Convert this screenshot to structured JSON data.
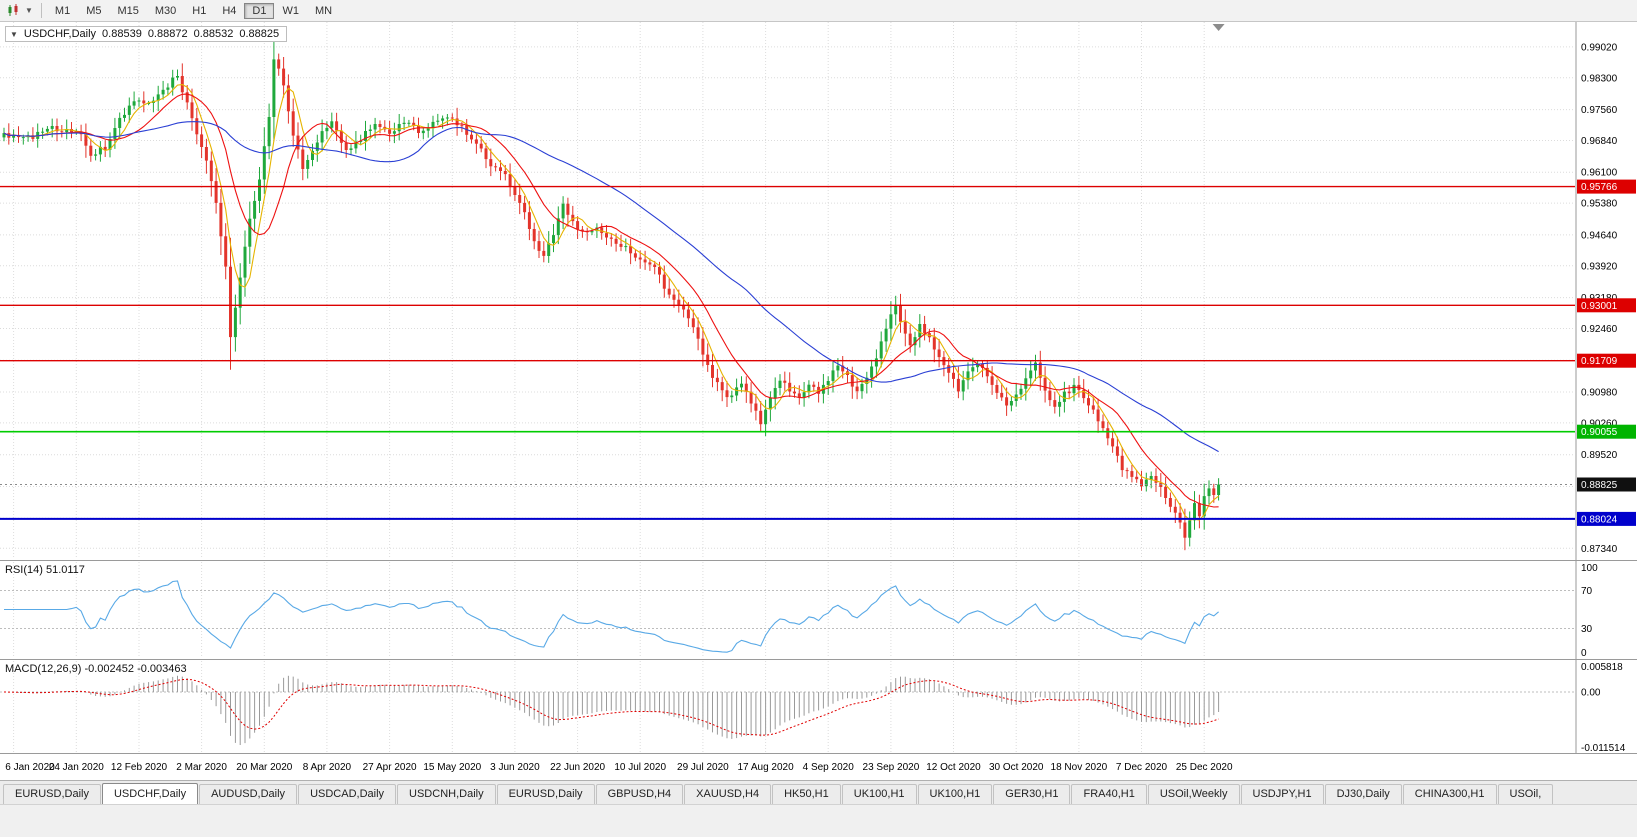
{
  "toolbar": {
    "timeframes": [
      {
        "label": "M1",
        "active": false
      },
      {
        "label": "M5",
        "active": false
      },
      {
        "label": "M15",
        "active": false
      },
      {
        "label": "M30",
        "active": false
      },
      {
        "label": "H1",
        "active": false
      },
      {
        "label": "H4",
        "active": false
      },
      {
        "label": "D1",
        "active": true
      },
      {
        "label": "W1",
        "active": false
      },
      {
        "label": "MN",
        "active": false
      }
    ]
  },
  "chart": {
    "symbol_period": "USDCHF,Daily",
    "open": "0.88539",
    "high": "0.88872",
    "low": "0.88532",
    "close": "0.88825"
  },
  "indicators": {
    "rsi_label": "RSI(14) 51.0117",
    "macd_label": "MACD(12,26,9) -0.002452 -0.003463"
  },
  "chart_data": {
    "type": "candlestick",
    "symbol": "USDCHF",
    "timeframe": "Daily",
    "ohlc_last": {
      "open": 0.88539,
      "high": 0.88872,
      "low": 0.88532,
      "close": 0.88825
    },
    "last_close": 0.88825,
    "candle_count": 253,
    "price_axis": {
      "min": 0.8709,
      "max": 0.996,
      "tick_labels": [
        "0.99020",
        "0.98300",
        "0.97560",
        "0.96840",
        "0.96100",
        "0.95380",
        "0.94640",
        "0.93920",
        "0.93180",
        "0.92460",
        "0.91720",
        "0.90980",
        "0.90260",
        "0.89520",
        "0.88780",
        "0.88040",
        "0.87340"
      ]
    },
    "x_labels": [
      "6 Jan 2020",
      "24 Jan 2020",
      "12 Feb 2020",
      "2 Mar 2020",
      "20 Mar 2020",
      "8 Apr 2020",
      "27 Apr 2020",
      "15 May 2020",
      "3 Jun 2020",
      "22 Jun 2020",
      "10 Jul 2020",
      "29 Jul 2020",
      "17 Aug 2020",
      "4 Sep 2020",
      "23 Sep 2020",
      "12 Oct 2020",
      "30 Oct 2020",
      "18 Nov 2020",
      "7 Dec 2020",
      "25 Dec 2020"
    ],
    "colors": {
      "up": "#1fa83c",
      "down": "#e3342b",
      "background": "#ffffff"
    },
    "levels": [
      {
        "name": "resistance-1",
        "label": "0.95766",
        "value": 0.95766,
        "badge_color": "#dd0000",
        "line_color": "#dd0000",
        "dash": false,
        "width": 1.4
      },
      {
        "name": "resistance-2",
        "label": "0.93001",
        "value": 0.93001,
        "badge_color": "#dd0000",
        "line_color": "#dd0000",
        "dash": false,
        "width": 1.4
      },
      {
        "name": "resistance-3",
        "label": "0.91709",
        "value": 0.91709,
        "badge_color": "#dd0000",
        "line_color": "#dd0000",
        "dash": false,
        "width": 1.4
      },
      {
        "name": "support-green",
        "label": "0.90055",
        "value": 0.90055,
        "badge_color": "#00b400",
        "line_color": "#00cc00",
        "dash": false,
        "width": 1.6
      },
      {
        "name": "current-price",
        "label": "0.88825",
        "value": 0.88825,
        "badge_color": "#101010",
        "line_color": "#8a8a8a",
        "dash": true,
        "width": 1
      },
      {
        "name": "support-blue",
        "label": "0.88024",
        "value": 0.88024,
        "badge_color": "#0000cc",
        "line_color": "#0000cc",
        "dash": false,
        "width": 2
      }
    ],
    "moving_averages": [
      {
        "name": "fast-yellow",
        "period": 5,
        "color": "#e6b400"
      },
      {
        "name": "medium-red",
        "period": 12,
        "color": "#ee1111"
      },
      {
        "name": "slow-blue",
        "period": 40,
        "color": "#2a3fd4"
      }
    ],
    "rsi": {
      "period": 14,
      "current": 51.0117,
      "levels": [
        70,
        30
      ],
      "axis_labels": [
        "100",
        "70",
        "30",
        "0"
      ],
      "color": "#59a9e6"
    },
    "macd": {
      "fast": 12,
      "slow": 26,
      "signal": 9,
      "current": -0.002452,
      "signal_current": -0.003463,
      "axis_labels": [
        "0.005818",
        "0.00",
        "-0.011514"
      ],
      "scale_max": 0.0062,
      "scale_min": -0.012,
      "histogram_color": "#9a9a9a",
      "signal_color": "#e00000"
    },
    "anchors": [
      [
        0,
        0.97
      ],
      [
        3,
        0.9688
      ],
      [
        6,
        0.9694
      ],
      [
        9,
        0.9716
      ],
      [
        12,
        0.9702
      ],
      [
        15,
        0.9712
      ],
      [
        18,
        0.9652
      ],
      [
        21,
        0.9668
      ],
      [
        24,
        0.973
      ],
      [
        27,
        0.9782
      ],
      [
        30,
        0.9772
      ],
      [
        33,
        0.98
      ],
      [
        36,
        0.9838
      ],
      [
        38,
        0.9768
      ],
      [
        40,
        0.97
      ],
      [
        42,
        0.9642
      ],
      [
        44,
        0.954
      ],
      [
        46,
        0.939
      ],
      [
        47,
        0.923
      ],
      [
        49,
        0.9365
      ],
      [
        51,
        0.95
      ],
      [
        53,
        0.959
      ],
      [
        55,
        0.9745
      ],
      [
        56,
        0.9878
      ],
      [
        58,
        0.9812
      ],
      [
        60,
        0.9692
      ],
      [
        62,
        0.9622
      ],
      [
        64,
        0.9655
      ],
      [
        66,
        0.97
      ],
      [
        68,
        0.9722
      ],
      [
        71,
        0.9662
      ],
      [
        74,
        0.969
      ],
      [
        77,
        0.9722
      ],
      [
        80,
        0.97
      ],
      [
        83,
        0.9732
      ],
      [
        86,
        0.9706
      ],
      [
        89,
        0.9726
      ],
      [
        92,
        0.9738
      ],
      [
        95,
        0.9712
      ],
      [
        98,
        0.9682
      ],
      [
        101,
        0.9628
      ],
      [
        104,
        0.9602
      ],
      [
        106,
        0.9562
      ],
      [
        108,
        0.9512
      ],
      [
        110,
        0.9452
      ],
      [
        112,
        0.9415
      ],
      [
        114,
        0.9468
      ],
      [
        116,
        0.953
      ],
      [
        118,
        0.9492
      ],
      [
        120,
        0.9466
      ],
      [
        123,
        0.948
      ],
      [
        126,
        0.9452
      ],
      [
        129,
        0.9432
      ],
      [
        132,
        0.9406
      ],
      [
        135,
        0.939
      ],
      [
        137,
        0.9342
      ],
      [
        139,
        0.9312
      ],
      [
        141,
        0.929
      ],
      [
        143,
        0.9252
      ],
      [
        145,
        0.9185
      ],
      [
        147,
        0.9132
      ],
      [
        149,
        0.91
      ],
      [
        151,
        0.9086
      ],
      [
        153,
        0.912
      ],
      [
        155,
        0.907
      ],
      [
        157,
        0.903
      ],
      [
        159,
        0.909
      ],
      [
        161,
        0.913
      ],
      [
        163,
        0.9106
      ],
      [
        165,
        0.9082
      ],
      [
        167,
        0.912
      ],
      [
        169,
        0.9096
      ],
      [
        171,
        0.9126
      ],
      [
        173,
        0.916
      ],
      [
        175,
        0.9132
      ],
      [
        177,
        0.9102
      ],
      [
        179,
        0.9136
      ],
      [
        181,
        0.918
      ],
      [
        183,
        0.925
      ],
      [
        185,
        0.9296
      ],
      [
        186,
        0.9262
      ],
      [
        188,
        0.9212
      ],
      [
        190,
        0.925
      ],
      [
        192,
        0.9222
      ],
      [
        194,
        0.9182
      ],
      [
        196,
        0.9142
      ],
      [
        198,
        0.9106
      ],
      [
        200,
        0.914
      ],
      [
        202,
        0.9166
      ],
      [
        204,
        0.9132
      ],
      [
        206,
        0.91
      ],
      [
        208,
        0.9062
      ],
      [
        210,
        0.9086
      ],
      [
        212,
        0.9126
      ],
      [
        214,
        0.916
      ],
      [
        216,
        0.9102
      ],
      [
        218,
        0.9062
      ],
      [
        220,
        0.9092
      ],
      [
        222,
        0.9112
      ],
      [
        224,
        0.9082
      ],
      [
        226,
        0.9052
      ],
      [
        228,
        0.9012
      ],
      [
        230,
        0.8966
      ],
      [
        232,
        0.8922
      ],
      [
        234,
        0.8896
      ],
      [
        236,
        0.8882
      ],
      [
        238,
        0.8906
      ],
      [
        240,
        0.8872
      ],
      [
        242,
        0.8832
      ],
      [
        244,
        0.8792
      ],
      [
        245,
        0.8762
      ],
      [
        246,
        0.8802
      ],
      [
        247,
        0.8836
      ],
      [
        248,
        0.8812
      ],
      [
        249,
        0.8852
      ],
      [
        250,
        0.888
      ],
      [
        251,
        0.8862
      ],
      [
        252,
        0.88825
      ]
    ]
  },
  "tabs": [
    {
      "label": "EURUSD,Daily",
      "active": false
    },
    {
      "label": "USDCHF,Daily",
      "active": true
    },
    {
      "label": "AUDUSD,Daily",
      "active": false
    },
    {
      "label": "USDCAD,Daily",
      "active": false
    },
    {
      "label": "USDCNH,Daily",
      "active": false
    },
    {
      "label": "EURUSD,Daily",
      "active": false
    },
    {
      "label": "GBPUSD,H4",
      "active": false
    },
    {
      "label": "XAUUSD,H4",
      "active": false
    },
    {
      "label": "HK50,H1",
      "active": false
    },
    {
      "label": "UK100,H1",
      "active": false
    },
    {
      "label": "UK100,H1",
      "active": false
    },
    {
      "label": "GER30,H1",
      "active": false
    },
    {
      "label": "FRA40,H1",
      "active": false
    },
    {
      "label": "USOil,Weekly",
      "active": false
    },
    {
      "label": "USDJPY,H1",
      "active": false
    },
    {
      "label": "DJ30,Daily",
      "active": false
    },
    {
      "label": "CHINA300,H1",
      "active": false
    },
    {
      "label": "USOil,",
      "active": false
    }
  ]
}
